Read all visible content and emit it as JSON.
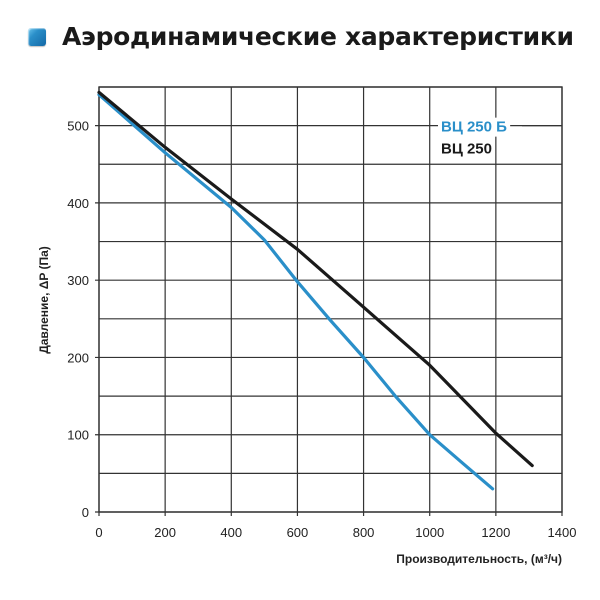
{
  "title": "Аэродинамические характеристики",
  "title_icon": "blue-square-bullet-icon",
  "colors": {
    "accent": "#2a8fc9",
    "series_b": "#2a8fc9",
    "series_base": "#1a1a1a",
    "grid": "#333333"
  },
  "chart_data": {
    "type": "line",
    "title": "Аэродинамические характеристики",
    "xlabel": "Производительность, (м³/ч)",
    "ylabel": "Давление, ΔP (Па)",
    "xlim": [
      0,
      1400
    ],
    "ylim": [
      0,
      550
    ],
    "x_ticks": [
      0,
      200,
      400,
      600,
      800,
      1000,
      1200,
      1400
    ],
    "y_ticks": [
      0,
      100,
      200,
      300,
      400,
      500
    ],
    "x_grid_step": 200,
    "y_grid_step": 50,
    "grid": true,
    "legend_position": "upper right (inside plot)",
    "series": [
      {
        "name": "ВЦ 250 Б",
        "color": "#2a8fc9",
        "points": [
          [
            0,
            540
          ],
          [
            200,
            465
          ],
          [
            400,
            394
          ],
          [
            500,
            352
          ],
          [
            600,
            298
          ],
          [
            700,
            248
          ],
          [
            800,
            200
          ],
          [
            900,
            148
          ],
          [
            1000,
            100
          ],
          [
            1100,
            63
          ],
          [
            1190,
            30
          ]
        ]
      },
      {
        "name": "ВЦ 250",
        "color": "#1a1a1a",
        "points": [
          [
            0,
            543
          ],
          [
            200,
            472
          ],
          [
            400,
            405
          ],
          [
            600,
            340
          ],
          [
            800,
            265
          ],
          [
            1000,
            190
          ],
          [
            1200,
            102
          ],
          [
            1310,
            60
          ]
        ]
      }
    ]
  }
}
